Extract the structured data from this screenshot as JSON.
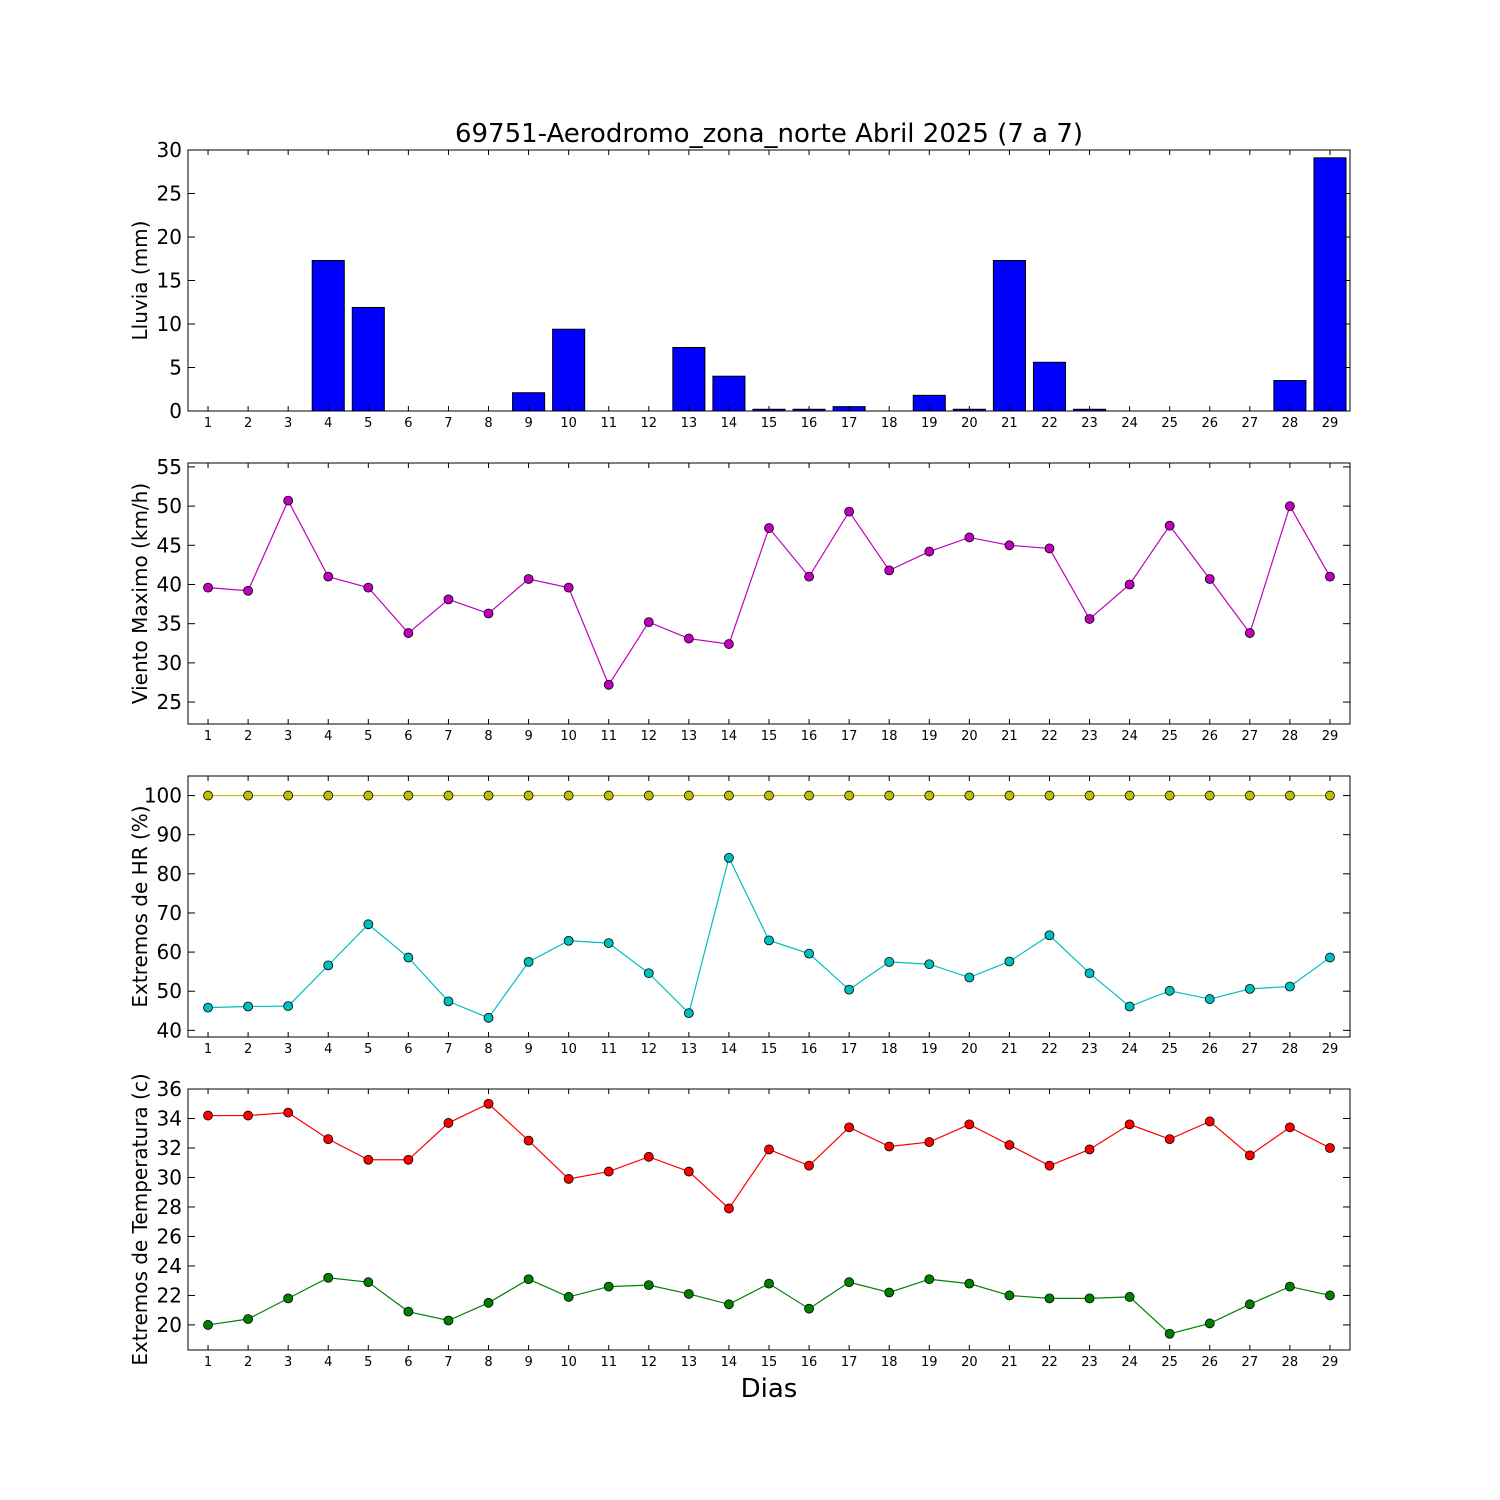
{
  "title": "69751-Aerodromo_zona_norte Abril 2025  (7 a 7)",
  "xlabel": "Dias",
  "chart_data": [
    {
      "type": "bar",
      "ylabel": "Lluvia (mm)",
      "ylim": [
        0,
        30
      ],
      "yticks": [
        0,
        5,
        10,
        15,
        20,
        25,
        30
      ],
      "categories": [
        1,
        2,
        3,
        4,
        5,
        6,
        7,
        8,
        9,
        10,
        11,
        12,
        13,
        14,
        15,
        16,
        17,
        18,
        19,
        20,
        21,
        22,
        23,
        24,
        25,
        26,
        27,
        28,
        29
      ],
      "color": "#0000ff",
      "values": [
        0,
        0,
        0,
        17.3,
        11.9,
        0,
        0,
        0,
        2.1,
        9.4,
        0,
        0,
        7.3,
        4.0,
        0.2,
        0.2,
        0.5,
        0,
        1.8,
        0.2,
        17.3,
        5.6,
        0.2,
        0,
        0,
        0,
        0,
        3.5,
        29.1
      ]
    },
    {
      "type": "line",
      "ylabel": "Viento Maximo (km/h)",
      "ylim": [
        22.2,
        55.5
      ],
      "yticks": [
        25,
        30,
        35,
        40,
        45,
        50,
        55
      ],
      "x": [
        1,
        2,
        3,
        4,
        5,
        6,
        7,
        8,
        9,
        10,
        11,
        12,
        13,
        14,
        15,
        16,
        17,
        18,
        19,
        20,
        21,
        22,
        23,
        24,
        25,
        26,
        27,
        28,
        29
      ],
      "series": [
        {
          "color": "#bf00bf",
          "values": [
            39.6,
            39.2,
            50.7,
            41.0,
            39.6,
            33.8,
            38.1,
            36.3,
            40.7,
            39.6,
            27.2,
            35.2,
            33.1,
            32.4,
            47.2,
            41.0,
            49.3,
            41.8,
            44.2,
            46.0,
            45.0,
            44.6,
            35.6,
            40.0,
            47.5,
            40.7,
            33.8,
            50.0,
            41.0
          ]
        }
      ]
    },
    {
      "type": "line",
      "ylabel": "Extremos de HR (%)",
      "ylim": [
        38.3,
        105
      ],
      "yticks": [
        40,
        50,
        60,
        70,
        80,
        90,
        100
      ],
      "x": [
        1,
        2,
        3,
        4,
        5,
        6,
        7,
        8,
        9,
        10,
        11,
        12,
        13,
        14,
        15,
        16,
        17,
        18,
        19,
        20,
        21,
        22,
        23,
        24,
        25,
        26,
        27,
        28,
        29
      ],
      "series": [
        {
          "color": "#bfbf00",
          "values": [
            100,
            100,
            100,
            100,
            100,
            100,
            100,
            100,
            100,
            100,
            100,
            100,
            100,
            100,
            100,
            100,
            100,
            100,
            100,
            100,
            100,
            100,
            100,
            100,
            100,
            100,
            100,
            100,
            100
          ]
        },
        {
          "color": "#00bfbf",
          "values": [
            45.8,
            46.1,
            46.2,
            56.6,
            67.1,
            58.6,
            47.4,
            43.2,
            57.5,
            62.9,
            62.3,
            54.6,
            44.4,
            84.1,
            63.0,
            59.6,
            50.4,
            57.5,
            56.9,
            53.5,
            57.6,
            64.3,
            54.6,
            46.1,
            50.1,
            48.0,
            50.6,
            51.2,
            58.6
          ]
        }
      ]
    },
    {
      "type": "line",
      "ylabel": "Extremos de Temperatura (c)",
      "ylim": [
        18.3,
        36
      ],
      "yticks": [
        20,
        22,
        24,
        26,
        28,
        30,
        32,
        34,
        36
      ],
      "x": [
        1,
        2,
        3,
        4,
        5,
        6,
        7,
        8,
        9,
        10,
        11,
        12,
        13,
        14,
        15,
        16,
        17,
        18,
        19,
        20,
        21,
        22,
        23,
        24,
        25,
        26,
        27,
        28,
        29
      ],
      "series": [
        {
          "color": "#ff0000",
          "values": [
            34.2,
            34.2,
            34.4,
            32.6,
            31.2,
            31.2,
            33.7,
            35.0,
            32.5,
            29.9,
            30.4,
            31.4,
            30.4,
            27.9,
            31.9,
            30.8,
            33.4,
            32.1,
            32.4,
            33.6,
            32.2,
            30.8,
            31.9,
            33.6,
            32.6,
            33.8,
            31.5,
            33.4,
            32.0
          ]
        },
        {
          "color": "#008000",
          "values": [
            20.0,
            20.4,
            21.8,
            23.2,
            22.9,
            20.9,
            20.3,
            21.5,
            23.1,
            21.9,
            22.6,
            22.7,
            22.1,
            21.4,
            22.8,
            21.1,
            22.9,
            22.2,
            23.1,
            22.8,
            22.0,
            21.8,
            21.8,
            21.9,
            19.4,
            20.1,
            21.4,
            22.6,
            22.0
          ]
        }
      ]
    }
  ]
}
